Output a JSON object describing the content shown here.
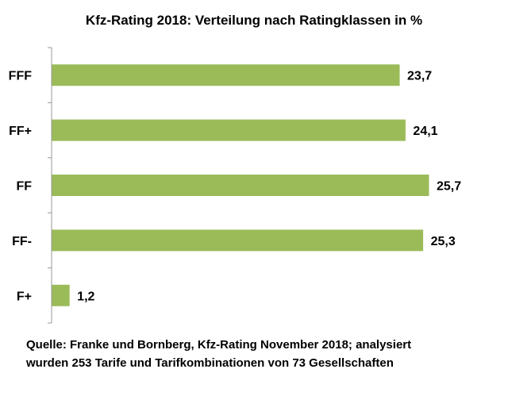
{
  "chart_data": {
    "type": "bar",
    "orientation": "horizontal",
    "title": "Kfz-Rating 2018: Verteilung nach Ratingklassen in %",
    "categories": [
      "FFF",
      "FF+",
      "FF",
      "FF-",
      "F+"
    ],
    "values": [
      23.7,
      24.1,
      25.7,
      25.3,
      1.2
    ],
    "data_labels": [
      "23,7",
      "24,1",
      "25,7",
      "25,3",
      "1,2"
    ],
    "xlabel": "",
    "ylabel": "",
    "xlim": [
      0,
      25.7
    ],
    "grid": false,
    "bar_color": "#9BBB59"
  },
  "source": {
    "line1": "Quelle:  Franke und Bornberg, Kfz-Rating November 2018; analysiert",
    "line2": "wurden 253 Tarife und Tarifkombinationen von 73 Gesellschaften"
  }
}
